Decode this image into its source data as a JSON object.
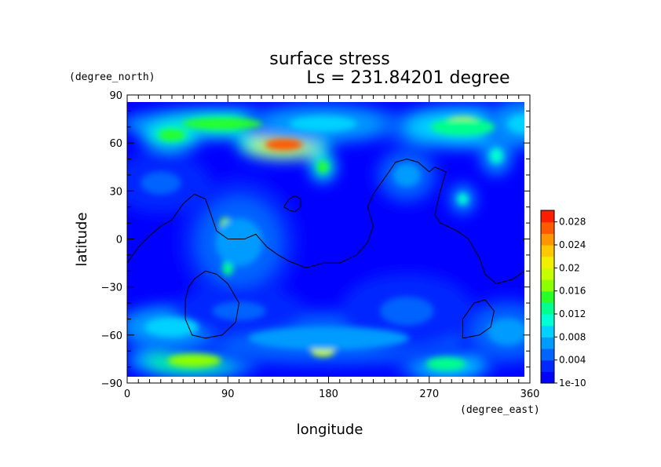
{
  "chart_data": {
    "type": "heatmap",
    "title": "surface stress",
    "subtitle": "Ls = 231.84201 degree",
    "xlabel": "longitude",
    "ylabel": "latitude",
    "x_units": "(degree_east)",
    "y_units": "(degree_north)",
    "xlim": [
      0,
      360
    ],
    "ylim": [
      -90,
      90
    ],
    "x_ticks": [
      "0",
      "90",
      "180",
      "270",
      "360"
    ],
    "y_ticks": [
      "90",
      "60",
      "30",
      "0",
      "−30",
      "−60",
      "−90"
    ],
    "colorbar": {
      "min": 0,
      "max": 0.03,
      "tick_labels": [
        "0.028",
        "0.024",
        "0.02",
        "0.016",
        "0.012",
        "0.008",
        "0.004",
        "1e-10"
      ],
      "tick_values": [
        0.028,
        0.024,
        0.02,
        0.016,
        0.012,
        0.008,
        0.004,
        0.0
      ],
      "levels": 15,
      "colors": [
        "#0000ff",
        "#0028ff",
        "#0064ff",
        "#009bff",
        "#00d2ff",
        "#00ffd2",
        "#00ff8c",
        "#28ff28",
        "#8cff00",
        "#c8ff00",
        "#f0f000",
        "#ffc800",
        "#ff9600",
        "#ff5a00",
        "#ff1e00"
      ]
    },
    "hotspots": [
      {
        "lon": 140,
        "lat": 59,
        "lon_width": 28,
        "lat_width": 6,
        "value": 0.026
      },
      {
        "lon": 300,
        "lat": 73,
        "lon_width": 26,
        "lat_width": 6,
        "value": 0.023
      },
      {
        "lon": 300,
        "lat": 70,
        "lon_width": 48,
        "lat_width": 9,
        "value": 0.012
      },
      {
        "lon": 85,
        "lat": 72,
        "lon_width": 60,
        "lat_width": 6,
        "value": 0.014
      },
      {
        "lon": 40,
        "lat": 65,
        "lon_width": 20,
        "lat_width": 6,
        "value": 0.014
      },
      {
        "lon": 175,
        "lat": 72,
        "lon_width": 50,
        "lat_width": 8,
        "value": 0.009
      },
      {
        "lon": 355,
        "lat": 72,
        "lon_width": 25,
        "lat_width": 10,
        "value": 0.009
      },
      {
        "lon": 330,
        "lat": 52,
        "lon_width": 10,
        "lat_width": 8,
        "value": 0.01
      },
      {
        "lon": 175,
        "lat": 45,
        "lon_width": 8,
        "lat_width": 6,
        "value": 0.015
      },
      {
        "lon": 88,
        "lat": 8,
        "lon_width": 9,
        "lat_width": 9,
        "value": 0.016
      },
      {
        "lon": 90,
        "lat": -18,
        "lon_width": 8,
        "lat_width": 8,
        "value": 0.012
      },
      {
        "lon": 100,
        "lat": -2,
        "lon_width": 35,
        "lat_width": 25,
        "value": 0.006
      },
      {
        "lon": 30,
        "lat": 35,
        "lon_width": 30,
        "lat_width": 12,
        "value": 0.005
      },
      {
        "lon": 300,
        "lat": 25,
        "lon_width": 8,
        "lat_width": 6,
        "value": 0.01
      },
      {
        "lon": 250,
        "lat": 40,
        "lon_width": 20,
        "lat_width": 12,
        "value": 0.006
      },
      {
        "lon": 60,
        "lat": -76,
        "lon_width": 40,
        "lat_width": 7,
        "value": 0.016
      },
      {
        "lon": 175,
        "lat": -70,
        "lon_width": 18,
        "lat_width": 6,
        "value": 0.019
      },
      {
        "lon": 285,
        "lat": -78,
        "lon_width": 30,
        "lat_width": 7,
        "value": 0.012
      },
      {
        "lon": 180,
        "lat": -62,
        "lon_width": 120,
        "lat_width": 12,
        "value": 0.007
      },
      {
        "lon": 40,
        "lat": -55,
        "lon_width": 40,
        "lat_width": 10,
        "value": 0.008
      },
      {
        "lon": 340,
        "lat": -58,
        "lon_width": 30,
        "lat_width": 14,
        "value": 0.006
      },
      {
        "lon": 250,
        "lat": -45,
        "lon_width": 40,
        "lat_width": 15,
        "value": 0.005
      },
      {
        "lon": 100,
        "lat": -45,
        "lon_width": 40,
        "lat_width": 10,
        "value": 0.005
      }
    ],
    "contours": [
      [
        [
          0,
          -15
        ],
        [
          10,
          -5
        ],
        [
          20,
          2
        ],
        [
          30,
          8
        ],
        [
          40,
          12
        ],
        [
          50,
          22
        ],
        [
          60,
          28
        ],
        [
          70,
          25
        ],
        [
          75,
          15
        ],
        [
          80,
          5
        ],
        [
          90,
          0
        ],
        [
          105,
          0
        ],
        [
          115,
          3
        ],
        [
          125,
          -5
        ],
        [
          135,
          -10
        ],
        [
          145,
          -14
        ],
        [
          160,
          -18
        ],
        [
          175,
          -15
        ],
        [
          190,
          -15
        ],
        [
          205,
          -10
        ],
        [
          215,
          -2
        ],
        [
          220,
          8
        ],
        [
          215,
          20
        ],
        [
          220,
          28
        ],
        [
          230,
          38
        ],
        [
          240,
          48
        ],
        [
          250,
          50
        ],
        [
          260,
          48
        ],
        [
          270,
          42
        ],
        [
          275,
          45
        ],
        [
          285,
          42
        ],
        [
          280,
          30
        ],
        [
          275,
          15
        ],
        [
          280,
          10
        ],
        [
          295,
          5
        ],
        [
          305,
          0
        ],
        [
          315,
          -12
        ],
        [
          320,
          -22
        ],
        [
          330,
          -28
        ],
        [
          345,
          -25
        ],
        [
          355,
          -20
        ]
      ],
      [
        [
          60,
          -25
        ],
        [
          70,
          -20
        ],
        [
          80,
          -22
        ],
        [
          90,
          -28
        ],
        [
          100,
          -40
        ],
        [
          97,
          -52
        ],
        [
          85,
          -60
        ],
        [
          70,
          -62
        ],
        [
          58,
          -60
        ],
        [
          52,
          -50
        ],
        [
          52,
          -38
        ],
        [
          55,
          -30
        ],
        [
          60,
          -25
        ]
      ],
      [
        [
          300,
          -62
        ],
        [
          315,
          -60
        ],
        [
          325,
          -55
        ],
        [
          328,
          -45
        ],
        [
          320,
          -38
        ],
        [
          310,
          -40
        ],
        [
          300,
          -50
        ],
        [
          300,
          -62
        ]
      ],
      [
        [
          140,
          20
        ],
        [
          145,
          25
        ],
        [
          150,
          27
        ],
        [
          155,
          25
        ],
        [
          155,
          20
        ],
        [
          150,
          17
        ],
        [
          145,
          18
        ],
        [
          140,
          20
        ]
      ]
    ]
  }
}
